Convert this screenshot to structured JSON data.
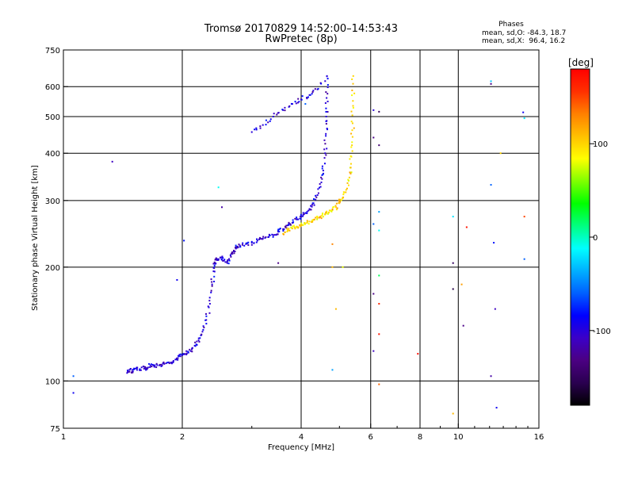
{
  "header": {
    "title": "Tromsø 20170829 14:52:00–14:53:43",
    "subtitle": "RwPretec (8p)"
  },
  "phases": {
    "heading": "Phases",
    "line_o": "mean, sd,O: -84.3, 18.7",
    "line_x": "mean, sd,X:  96.4, 16.2"
  },
  "colorbar": {
    "unit": "[deg]",
    "range": [
      -180,
      180
    ],
    "tick_values": [
      100,
      0,
      -100
    ],
    "tick_labels": [
      "100",
      "0",
      "-100"
    ],
    "colors": [
      "#000000",
      "#2a0050",
      "#4b0082",
      "#3b00c8",
      "#0000ff",
      "#0060ff",
      "#00b0ff",
      "#00ffff",
      "#00ff80",
      "#00ff00",
      "#80ff00",
      "#ffff00",
      "#ffc000",
      "#ff8000",
      "#ff3000",
      "#ff0000"
    ]
  },
  "chart_data": {
    "type": "scatter",
    "title": "Tromsø 20170829 14:52:00–14:53:43",
    "subtitle": "RwPretec (8p)",
    "xlabel": "Frequency [MHz]",
    "ylabel": "Stationary phase Virtual Height [km]",
    "x_scale": "log",
    "y_scale": "log",
    "xlim": [
      1,
      16
    ],
    "ylim": [
      75,
      750
    ],
    "x_ticks": [
      1,
      2,
      4,
      6,
      8,
      10,
      16
    ],
    "x_tick_labels": [
      "1",
      "2",
      "4",
      "6",
      "8",
      "10",
      "16"
    ],
    "y_ticks": [
      75,
      100,
      200,
      300,
      400,
      500,
      600,
      750
    ],
    "y_tick_labels": [
      "75",
      "100",
      "200",
      "300",
      "400",
      "500",
      "600",
      "750"
    ],
    "x_gridlines": [
      2,
      4,
      6,
      8,
      10
    ],
    "y_gridlines": [
      100,
      200,
      300,
      400,
      500,
      600
    ],
    "series": [
      {
        "trace": "o_mode",
        "phase": -100,
        "points": [
          [
            1.45,
            105
          ],
          [
            1.47,
            107
          ],
          [
            1.5,
            106
          ],
          [
            1.53,
            108
          ],
          [
            1.56,
            107
          ],
          [
            1.6,
            109
          ],
          [
            1.63,
            108
          ],
          [
            1.66,
            110
          ],
          [
            1.7,
            109
          ],
          [
            1.75,
            110
          ],
          [
            1.8,
            111
          ],
          [
            1.85,
            112
          ],
          [
            1.9,
            113
          ],
          [
            1.95,
            115
          ],
          [
            2.0,
            117
          ],
          [
            2.05,
            118
          ],
          [
            2.1,
            120
          ],
          [
            2.15,
            124
          ],
          [
            2.2,
            128
          ],
          [
            2.25,
            135
          ],
          [
            2.3,
            145
          ],
          [
            2.35,
            160
          ],
          [
            2.38,
            180
          ],
          [
            2.4,
            195
          ],
          [
            2.42,
            205
          ],
          [
            2.45,
            210
          ],
          [
            2.5,
            212
          ],
          [
            2.55,
            208
          ],
          [
            2.6,
            205
          ],
          [
            2.65,
            215
          ],
          [
            2.7,
            220
          ],
          [
            2.75,
            225
          ],
          [
            2.8,
            228
          ],
          [
            2.9,
            230
          ],
          [
            3.0,
            232
          ],
          [
            3.1,
            235
          ],
          [
            3.2,
            238
          ],
          [
            3.3,
            240
          ],
          [
            3.4,
            243
          ],
          [
            3.5,
            248
          ],
          [
            3.6,
            252
          ],
          [
            3.7,
            258
          ],
          [
            3.8,
            262
          ],
          [
            3.9,
            268
          ],
          [
            4.0,
            272
          ],
          [
            4.1,
            278
          ],
          [
            4.2,
            285
          ],
          [
            4.3,
            295
          ],
          [
            4.4,
            310
          ],
          [
            4.5,
            335
          ],
          [
            4.55,
            360
          ],
          [
            4.6,
            400
          ],
          [
            4.62,
            450
          ],
          [
            4.63,
            500
          ],
          [
            4.64,
            560
          ],
          [
            4.65,
            640
          ],
          [
            4.4,
            590
          ],
          [
            4.2,
            570
          ],
          [
            4.0,
            555
          ],
          [
            3.8,
            540
          ],
          [
            3.6,
            520
          ],
          [
            3.4,
            500
          ],
          [
            3.2,
            475
          ],
          [
            3.0,
            455
          ]
        ]
      },
      {
        "trace": "x_mode",
        "phase": 100,
        "points": [
          [
            3.6,
            245
          ],
          [
            3.7,
            250
          ],
          [
            3.8,
            253
          ],
          [
            3.9,
            256
          ],
          [
            4.0,
            258
          ],
          [
            4.1,
            261
          ],
          [
            4.2,
            264
          ],
          [
            4.3,
            267
          ],
          [
            4.4,
            270
          ],
          [
            4.5,
            273
          ],
          [
            4.6,
            276
          ],
          [
            4.7,
            279
          ],
          [
            4.8,
            283
          ],
          [
            4.9,
            288
          ],
          [
            5.0,
            295
          ],
          [
            5.1,
            305
          ],
          [
            5.2,
            320
          ],
          [
            5.3,
            345
          ],
          [
            5.35,
            375
          ],
          [
            5.38,
            420
          ],
          [
            5.4,
            480
          ],
          [
            5.41,
            550
          ],
          [
            5.42,
            640
          ]
        ]
      },
      {
        "trace": "scattered",
        "points": [
          [
            1.06,
            103,
            -60
          ],
          [
            1.06,
            93,
            -90
          ],
          [
            1.33,
            380,
            -110
          ],
          [
            1.94,
            185,
            -90
          ],
          [
            2.02,
            235,
            -80
          ],
          [
            2.47,
            325,
            -10
          ],
          [
            2.52,
            288,
            -120
          ],
          [
            3.5,
            205,
            -130
          ],
          [
            4.1,
            540,
            -60
          ],
          [
            4.8,
            230,
            130
          ],
          [
            4.8,
            200,
            110
          ],
          [
            4.8,
            107,
            -40
          ],
          [
            4.9,
            155,
            110
          ],
          [
            5.1,
            200,
            80
          ],
          [
            6.1,
            520,
            -100
          ],
          [
            6.1,
            440,
            -130
          ],
          [
            6.1,
            260,
            -60
          ],
          [
            6.1,
            170,
            -130
          ],
          [
            6.1,
            120,
            -110
          ],
          [
            6.3,
            515,
            -150
          ],
          [
            6.3,
            420,
            -140
          ],
          [
            6.3,
            280,
            -40
          ],
          [
            6.3,
            250,
            -10
          ],
          [
            6.3,
            190,
            20
          ],
          [
            6.3,
            160,
            160
          ],
          [
            6.3,
            133,
            170
          ],
          [
            6.3,
            98,
            140
          ],
          [
            7.9,
            118,
            175
          ],
          [
            9.7,
            272,
            -20
          ],
          [
            9.7,
            205,
            -150
          ],
          [
            9.7,
            175,
            -160
          ],
          [
            9.7,
            82,
            110
          ],
          [
            10.2,
            180,
            120
          ],
          [
            10.3,
            140,
            -130
          ],
          [
            10.5,
            255,
            170
          ],
          [
            12.1,
            610,
            -130
          ],
          [
            12.1,
            620,
            -30
          ],
          [
            12.1,
            330,
            -60
          ],
          [
            12.1,
            103,
            -120
          ],
          [
            12.3,
            232,
            -80
          ],
          [
            12.4,
            155,
            -110
          ],
          [
            12.5,
            85,
            -90
          ],
          [
            12.8,
            400,
            100
          ],
          [
            14.6,
            513,
            -90
          ],
          [
            14.7,
            495,
            -20
          ],
          [
            14.7,
            210,
            -60
          ],
          [
            14.7,
            272,
            150
          ]
        ]
      }
    ]
  }
}
